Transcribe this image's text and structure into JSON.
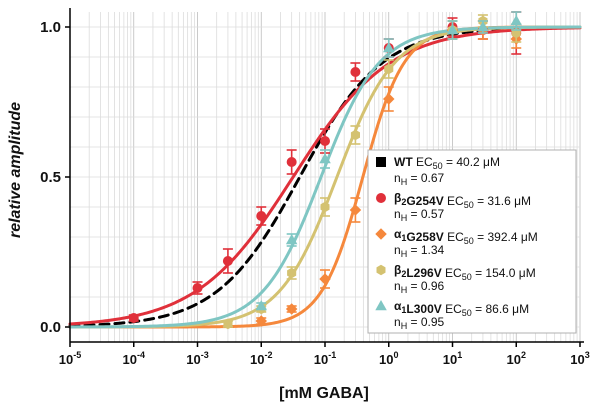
{
  "chart_data": {
    "type": "scatter",
    "x_scale": "log",
    "xlim": [
      1e-05,
      1000
    ],
    "ylim": [
      -0.05,
      1.05
    ],
    "xlabel": "[mM GABA]",
    "ylabel": "relative amplitude",
    "x_ticks": [
      {
        "base": "10",
        "exp": "-5"
      },
      {
        "base": "10",
        "exp": "-4"
      },
      {
        "base": "10",
        "exp": "-3"
      },
      {
        "base": "10",
        "exp": "-2"
      },
      {
        "base": "10",
        "exp": "-1"
      },
      {
        "base": "10",
        "exp": "0"
      },
      {
        "base": "10",
        "exp": "1"
      },
      {
        "base": "10",
        "exp": "2"
      },
      {
        "base": "10",
        "exp": "3"
      }
    ],
    "y_ticks": [
      "0.0",
      "0.5",
      "1.0"
    ],
    "grid": true,
    "legend_position": "bottom-right",
    "series": [
      {
        "label": "WT",
        "label_parts": [
          {
            "t": "WT",
            "b": true
          }
        ],
        "ec50_text": "EC",
        "ec50_sub": "50",
        "ec50_value": " = 40.2 μM",
        "nh_text": "n",
        "nh_sub": "H",
        "nh_value": " = 0.67",
        "color": "#000000",
        "marker": "square",
        "dashed": true,
        "ec50_mM": 0.0402,
        "nH": 0.67,
        "x": [],
        "y": [],
        "err": []
      },
      {
        "label": "β2G254V",
        "label_parts": [
          {
            "t": "β",
            "b": true
          },
          {
            "t": "2",
            "b": true,
            "sub": true
          },
          {
            "t": "G254V",
            "b": true
          }
        ],
        "ec50_text": "EC",
        "ec50_sub": "50",
        "ec50_value": " = 31.6 μM",
        "nh_text": "n",
        "nh_sub": "H",
        "nh_value": " = 0.57",
        "color": "#e0303a",
        "marker": "circle",
        "dashed": false,
        "ec50_mM": 0.0316,
        "nH": 0.57,
        "x": [
          0.0001,
          0.001,
          0.003,
          0.01,
          0.03,
          0.1,
          0.3,
          1,
          10,
          30,
          100
        ],
        "y": [
          0.03,
          0.13,
          0.22,
          0.37,
          0.55,
          0.62,
          0.85,
          0.93,
          1.0,
          0.99,
          0.98
        ],
        "err": [
          0.01,
          0.02,
          0.04,
          0.03,
          0.04,
          0.04,
          0.03,
          0.03,
          0.03,
          0.03,
          0.07
        ]
      },
      {
        "label": "α1G258V",
        "label_parts": [
          {
            "t": "α",
            "b": true
          },
          {
            "t": "1",
            "b": true,
            "sub": true
          },
          {
            "t": "G258V",
            "b": true
          }
        ],
        "ec50_text": "EC",
        "ec50_sub": "50",
        "ec50_value": " = 392.4 μM",
        "nh_text": "n",
        "nh_sub": "H",
        "nh_value": " = 1.34",
        "color": "#f5883c",
        "marker": "diamond",
        "dashed": false,
        "ec50_mM": 0.3924,
        "nH": 1.34,
        "x": [
          0.01,
          0.03,
          0.1,
          0.3,
          1,
          10,
          30,
          100
        ],
        "y": [
          0.02,
          0.06,
          0.16,
          0.39,
          0.76,
          0.99,
          0.99,
          0.96
        ],
        "err": [
          0.01,
          0.01,
          0.03,
          0.04,
          0.04,
          0.03,
          0.03,
          0.03
        ]
      },
      {
        "label": "β2L296V",
        "label_parts": [
          {
            "t": "β",
            "b": true
          },
          {
            "t": "2",
            "b": true,
            "sub": true
          },
          {
            "t": "L296V",
            "b": true
          }
        ],
        "ec50_text": "EC",
        "ec50_sub": "50",
        "ec50_value": " = 154.0 μM",
        "nh_text": "n",
        "nh_sub": "H",
        "nh_value": " = 0.96",
        "color": "#d4c271",
        "marker": "hexagon",
        "dashed": false,
        "ec50_mM": 0.154,
        "nH": 0.96,
        "x": [
          0.003,
          0.01,
          0.03,
          0.1,
          0.3,
          1,
          10,
          30,
          100
        ],
        "y": [
          0.01,
          0.06,
          0.18,
          0.4,
          0.64,
          0.86,
          0.99,
          1.02,
          0.98
        ],
        "err": [
          0.01,
          0.01,
          0.02,
          0.03,
          0.03,
          0.03,
          0.03,
          0.02,
          0.03
        ]
      },
      {
        "label": "α1L300V",
        "label_parts": [
          {
            "t": "α",
            "b": true
          },
          {
            "t": "1",
            "b": true,
            "sub": true
          },
          {
            "t": "L300V",
            "b": true
          }
        ],
        "ec50_text": "EC",
        "ec50_sub": "50",
        "ec50_value": " = 86.6 μM",
        "nh_text": "n",
        "nh_sub": "H",
        "nh_value": " = 0.95",
        "color": "#7fc6c3",
        "marker": "triangle",
        "dashed": false,
        "ec50_mM": 0.0866,
        "nH": 0.95,
        "x": [
          0.01,
          0.03,
          0.1,
          1,
          10,
          30,
          100
        ],
        "y": [
          0.07,
          0.29,
          0.56,
          0.93,
          0.99,
          1.0,
          1.02
        ],
        "err": [
          0.01,
          0.02,
          0.03,
          0.03,
          0.03,
          0.02,
          0.03
        ]
      }
    ]
  }
}
